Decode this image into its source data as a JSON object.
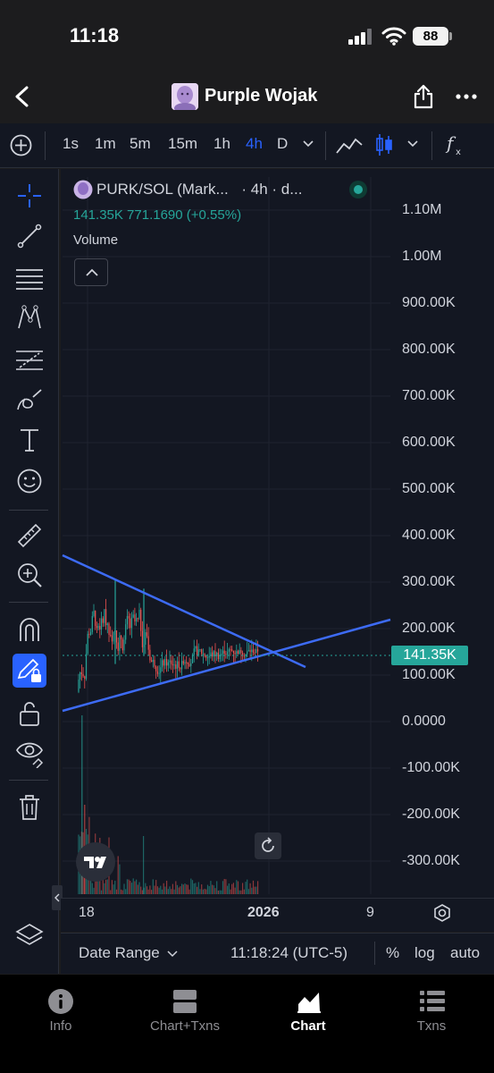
{
  "status_bar": {
    "time": "11:18",
    "battery": "88"
  },
  "header": {
    "title": "Purple Wojak"
  },
  "timeframes": [
    "1s",
    "1m",
    "5m",
    "15m",
    "1h",
    "4h",
    "D"
  ],
  "legend": {
    "symbol": "PURK/SOL (Mark...",
    "interval": "· 4h · d...",
    "price_info": "141.35K  771.1690 (+0.55%)",
    "volume_label": "Volume"
  },
  "y_axis": [
    "1.10M",
    "1.00M",
    "900.00K",
    "800.00K",
    "700.00K",
    "600.00K",
    "500.00K",
    "400.00K",
    "300.00K",
    "200.00K",
    "100.00K",
    "0.0000",
    "-100.00K",
    "-200.00K",
    "-300.00K"
  ],
  "current_price": "141.35K",
  "x_axis": [
    "18",
    "2026",
    "9"
  ],
  "bottom_bar": {
    "date_range": "Date Range",
    "time": "11:18:24 (UTC-5)",
    "percent": "%",
    "log": "log",
    "auto": "auto"
  },
  "tabs": [
    {
      "label": "Info",
      "icon": "info-icon"
    },
    {
      "label": "Chart+Txns",
      "icon": "chart-txns-icon"
    },
    {
      "label": "Chart",
      "icon": "chart-icon",
      "active": true
    },
    {
      "label": "Txns",
      "icon": "list-icon"
    }
  ],
  "colors": {
    "background": "#131722",
    "up": "#26a69a",
    "down": "#ef5350",
    "accent": "#2962ff",
    "trendline": "#3d6bf5"
  }
}
